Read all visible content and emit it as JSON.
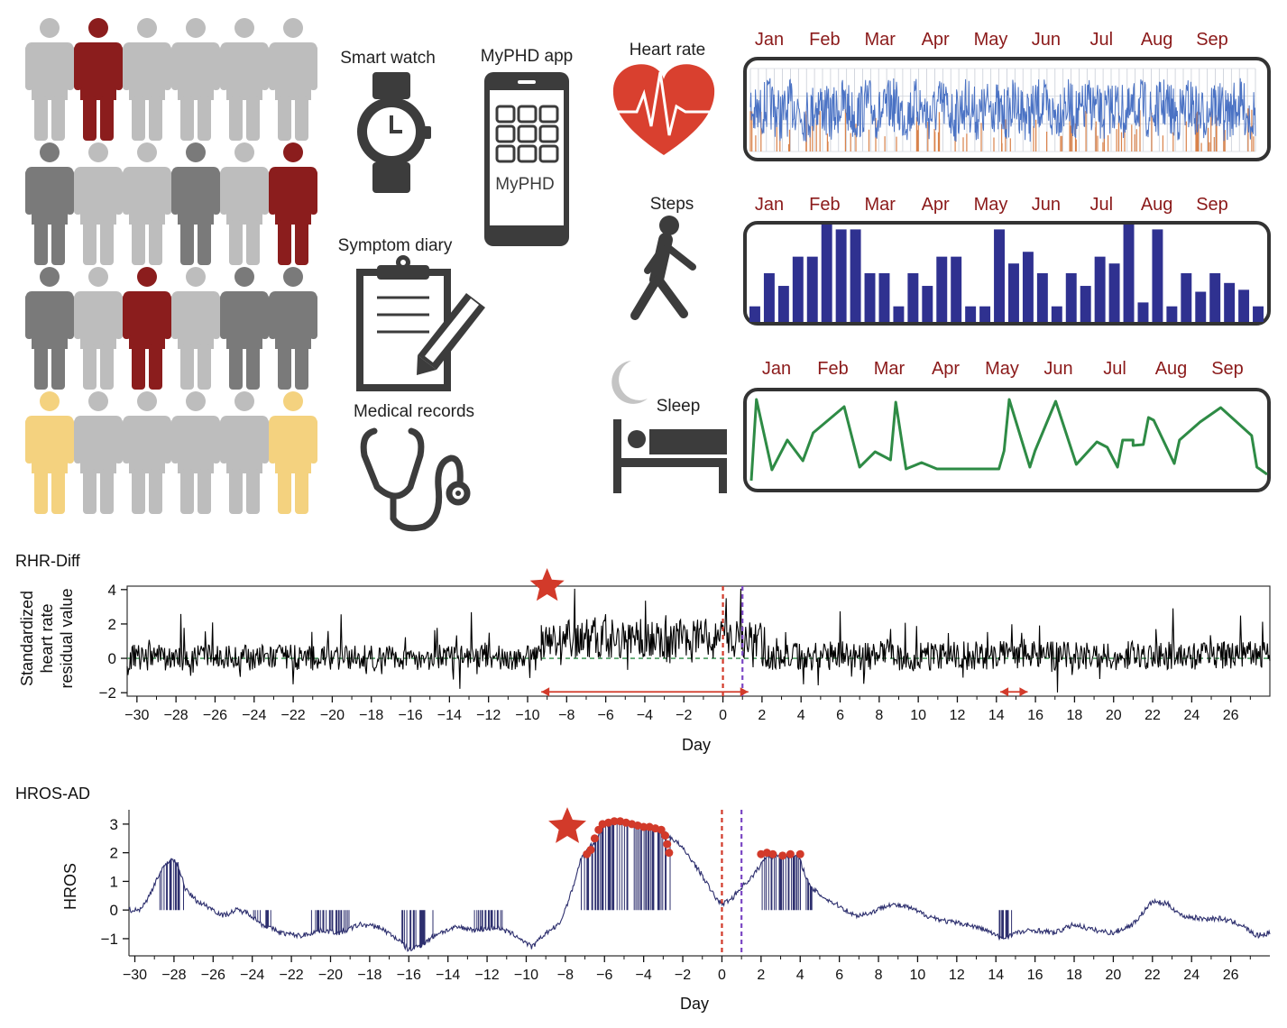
{
  "people_grid": {
    "rows": [
      [
        "light",
        "dark-red",
        "light",
        "light",
        "light",
        "light"
      ],
      [
        "dark",
        "light",
        "light",
        "dark",
        "light",
        "dark-red"
      ],
      [
        "dark",
        "light",
        "dark-red",
        "light",
        "dark",
        "dark"
      ],
      [
        "yellow",
        "light",
        "light",
        "light",
        "light",
        "yellow"
      ]
    ],
    "colors": {
      "light": "#bdbdbd",
      "dark": "#7a7a7a",
      "dark-red": "#8b1d1d",
      "yellow": "#f4d27f"
    }
  },
  "devices": {
    "smart_watch": "Smart watch",
    "myphd_app": "MyPHD app",
    "app_screen_text": "MyPHD",
    "symptom_diary": "Symptom diary",
    "medical_records": "Medical records",
    "icons": [
      "smart-watch-icon",
      "phone-icon",
      "clipboard-icon",
      "pencil-icon",
      "stethoscope-icon"
    ]
  },
  "panels": {
    "heart_rate": {
      "label": "Heart rate",
      "icon": "heart-ecg-icon",
      "months": [
        "Jan",
        "Feb",
        "Mar",
        "Apr",
        "May",
        "Jun",
        "Jul",
        "Aug",
        "Sep"
      ],
      "color": "#4a72c4",
      "accent": "#d9824a"
    },
    "steps": {
      "label": "Steps",
      "icon": "walking-person-icon",
      "months": [
        "Jan",
        "Feb",
        "Mar",
        "Apr",
        "May",
        "Jun",
        "Jul",
        "Aug",
        "Sep"
      ],
      "color": "#2f3190",
      "bars": [
        0.16,
        0.5,
        0.37,
        0.67,
        0.67,
        1.0,
        0.95,
        0.95,
        0.5,
        0.5,
        0.16,
        0.5,
        0.37,
        0.67,
        0.67,
        0.16,
        0.16,
        0.95,
        0.6,
        0.72,
        0.5,
        0.16,
        0.5,
        0.37,
        0.67,
        0.6,
        1.0,
        0.2,
        0.95,
        0.16,
        0.5,
        0.31,
        0.5,
        0.4,
        0.33,
        0.16
      ]
    },
    "sleep": {
      "label": "Sleep",
      "icon": "bed-moon-icon",
      "months": [
        "Jan",
        "Feb",
        "Mar",
        "Apr",
        "May",
        "Jun",
        "Jul",
        "Aug",
        "Sep"
      ],
      "color": "#2e8b45",
      "points": [
        [
          0,
          0.05
        ],
        [
          0.01,
          0.95
        ],
        [
          0.04,
          0.17
        ],
        [
          0.07,
          0.5
        ],
        [
          0.1,
          0.27
        ],
        [
          0.12,
          0.58
        ],
        [
          0.18,
          0.87
        ],
        [
          0.21,
          0.2
        ],
        [
          0.24,
          0.37
        ],
        [
          0.27,
          0.28
        ],
        [
          0.28,
          0.92
        ],
        [
          0.3,
          0.18
        ],
        [
          0.33,
          0.25
        ],
        [
          0.36,
          0.18
        ],
        [
          0.43,
          0.18
        ],
        [
          0.48,
          0.18
        ],
        [
          0.49,
          0.38
        ],
        [
          0.5,
          0.95
        ],
        [
          0.54,
          0.2
        ],
        [
          0.55,
          0.38
        ],
        [
          0.59,
          0.93
        ],
        [
          0.63,
          0.23
        ],
        [
          0.67,
          0.48
        ],
        [
          0.69,
          0.42
        ],
        [
          0.71,
          0.2
        ],
        [
          0.72,
          0.5
        ],
        [
          0.74,
          0.5
        ],
        [
          0.74,
          0.44
        ],
        [
          0.76,
          0.45
        ],
        [
          0.77,
          0.75
        ],
        [
          0.78,
          0.72
        ],
        [
          0.82,
          0.24
        ],
        [
          0.83,
          0.5
        ],
        [
          0.87,
          0.7
        ],
        [
          0.91,
          0.86
        ],
        [
          0.97,
          0.55
        ],
        [
          0.98,
          0.2
        ],
        [
          1.0,
          0.12
        ]
      ]
    }
  },
  "chart_data": [
    {
      "type": "line",
      "title": "RHR-Diff",
      "xlabel": "Day",
      "ylabel_lines": [
        "Standardized",
        "heart rate",
        "residual value"
      ],
      "xlim": [
        -30.5,
        28
      ],
      "ylim": [
        -2.2,
        4.2
      ],
      "xticks": [
        -30,
        -28,
        -26,
        -24,
        -22,
        -20,
        -18,
        -16,
        -14,
        -12,
        -10,
        -8,
        -6,
        -4,
        -2,
        0,
        2,
        4,
        6,
        8,
        10,
        12,
        14,
        16,
        18,
        20,
        22,
        24,
        26
      ],
      "yticks": [
        -2,
        0,
        2,
        4
      ],
      "series_color": "#000000",
      "baseline": {
        "y": 0,
        "color": "#2e8b45"
      },
      "vlines": [
        {
          "x": 0,
          "color": "#d23a2a"
        },
        {
          "x": 1,
          "color": "#7b47c4"
        }
      ],
      "arrows": [
        {
          "x0": -9.3,
          "x1": 1.3,
          "y": -1.95,
          "color": "#d23a2a"
        },
        {
          "x0": 14.2,
          "x1": 15.6,
          "y": -1.95,
          "color": "#d23a2a"
        }
      ],
      "star": {
        "x": -9,
        "y": 4.2,
        "color": "#d23a2a"
      },
      "segments": [
        {
          "x0": -30.5,
          "x1": -9.3,
          "base": 0.05,
          "amp": 0.75
        },
        {
          "x0": -9.3,
          "x1": 2.0,
          "base": 1.15,
          "amp": 1.15
        },
        {
          "x0": 2.0,
          "x1": 28,
          "base": 0.15,
          "amp": 0.85
        }
      ]
    },
    {
      "type": "line",
      "title": "HROS-AD",
      "xlabel": "Day",
      "ylabel": "HROS",
      "xlim": [
        -30.3,
        28
      ],
      "ylim": [
        -1.6,
        3.5
      ],
      "xticks": [
        -30,
        -28,
        -26,
        -24,
        -22,
        -20,
        -18,
        -16,
        -14,
        -12,
        -10,
        -8,
        -6,
        -4,
        -2,
        0,
        2,
        4,
        6,
        8,
        10,
        12,
        14,
        16,
        18,
        20,
        22,
        24,
        26
      ],
      "yticks": [
        -1,
        0,
        1,
        2,
        3
      ],
      "series_color": "#2d2f6e",
      "vlines": [
        {
          "x": 0,
          "color": "#d23a2a"
        },
        {
          "x": 1,
          "color": "#7b47c4"
        }
      ],
      "star": {
        "x": -7.9,
        "y": 2.9,
        "color": "#d23a2a"
      },
      "anomaly_color": "#d23a2a",
      "keypoints": [
        [
          -30.3,
          0
        ],
        [
          -29.8,
          0
        ],
        [
          -29.4,
          0.3
        ],
        [
          -28.8,
          1.2
        ],
        [
          -28.2,
          1.8
        ],
        [
          -27.8,
          1.6
        ],
        [
          -27.4,
          0.7
        ],
        [
          -26.8,
          0.3
        ],
        [
          -26.2,
          0.1
        ],
        [
          -25.5,
          -0.2
        ],
        [
          -24.8,
          0
        ],
        [
          -24.2,
          -0.1
        ],
        [
          -23.5,
          -0.5
        ],
        [
          -22.5,
          -0.8
        ],
        [
          -21.5,
          -0.9
        ],
        [
          -20.5,
          -0.7
        ],
        [
          -19.5,
          -0.8
        ],
        [
          -18.5,
          -0.5
        ],
        [
          -17.5,
          -0.6
        ],
        [
          -16.6,
          -1.0
        ],
        [
          -16.0,
          -1.4
        ],
        [
          -15.3,
          -1.2
        ],
        [
          -14.5,
          -0.8
        ],
        [
          -13.5,
          -0.6
        ],
        [
          -12.5,
          -0.7
        ],
        [
          -11.5,
          -0.6
        ],
        [
          -10.5,
          -0.9
        ],
        [
          -9.7,
          -1.3
        ],
        [
          -9.0,
          -0.8
        ],
        [
          -8.3,
          -0.5
        ],
        [
          -7.7,
          0.6
        ],
        [
          -7.2,
          1.8
        ],
        [
          -6.5,
          2.4
        ],
        [
          -6.0,
          3.0
        ],
        [
          -5.3,
          3.1
        ],
        [
          -4.5,
          3.0
        ],
        [
          -3.6,
          2.9
        ],
        [
          -2.9,
          2.7
        ],
        [
          -2.2,
          2.3
        ],
        [
          -1.6,
          1.8
        ],
        [
          -1.0,
          1.2
        ],
        [
          -0.4,
          0.5
        ],
        [
          0,
          0.2
        ],
        [
          0.5,
          0.4
        ],
        [
          1.0,
          0.8
        ],
        [
          1.6,
          1.2
        ],
        [
          2.3,
          1.9
        ],
        [
          3.2,
          1.9
        ],
        [
          3.9,
          1.9
        ],
        [
          4.5,
          0.8
        ],
        [
          5.3,
          0.4
        ],
        [
          6.1,
          0.1
        ],
        [
          6.8,
          -0.2
        ],
        [
          7.6,
          -0.1
        ],
        [
          8.5,
          0.2
        ],
        [
          9.5,
          0.1
        ],
        [
          10.5,
          -0.2
        ],
        [
          11.5,
          -0.4
        ],
        [
          12.5,
          -0.5
        ],
        [
          13.5,
          -0.7
        ],
        [
          14.3,
          -1.0
        ],
        [
          15.0,
          -0.8
        ],
        [
          16.0,
          -0.7
        ],
        [
          17.0,
          -0.8
        ],
        [
          18.0,
          -0.5
        ],
        [
          19.0,
          -0.7
        ],
        [
          20.0,
          -0.8
        ],
        [
          21.0,
          -0.5
        ],
        [
          22.0,
          0.3
        ],
        [
          22.8,
          0.2
        ],
        [
          23.5,
          -0.2
        ],
        [
          24.5,
          -0.3
        ],
        [
          25.5,
          -0.3
        ],
        [
          26.5,
          -0.5
        ],
        [
          27.3,
          -0.9
        ],
        [
          28,
          -0.8
        ]
      ],
      "anomaly_points": [
        [
          -6.9,
          1.95
        ],
        [
          -6.7,
          2.1
        ],
        [
          -6.5,
          2.5
        ],
        [
          -6.3,
          2.8
        ],
        [
          -6.1,
          3.0
        ],
        [
          -5.8,
          3.05
        ],
        [
          -5.5,
          3.1
        ],
        [
          -5.2,
          3.1
        ],
        [
          -4.9,
          3.05
        ],
        [
          -4.6,
          3.0
        ],
        [
          -4.3,
          2.95
        ],
        [
          -4.0,
          2.9
        ],
        [
          -3.7,
          2.9
        ],
        [
          -3.4,
          2.85
        ],
        [
          -3.1,
          2.8
        ],
        [
          -2.9,
          2.6
        ],
        [
          -2.8,
          2.3
        ],
        [
          -2.7,
          2.0
        ],
        [
          2.0,
          1.95
        ],
        [
          2.3,
          2.0
        ],
        [
          2.6,
          1.95
        ],
        [
          3.1,
          1.9
        ],
        [
          3.5,
          1.95
        ],
        [
          4.0,
          1.95
        ]
      ],
      "bar_regions": [
        [
          -28.8,
          -27.4
        ],
        [
          -16.4,
          -14.6
        ],
        [
          -7.3,
          -2.6
        ],
        [
          2.0,
          4.6
        ],
        [
          -24.0,
          -23.0
        ],
        [
          -21.0,
          -19.0
        ],
        [
          -12.8,
          -11.2
        ],
        [
          14.0,
          15.0
        ]
      ]
    }
  ]
}
